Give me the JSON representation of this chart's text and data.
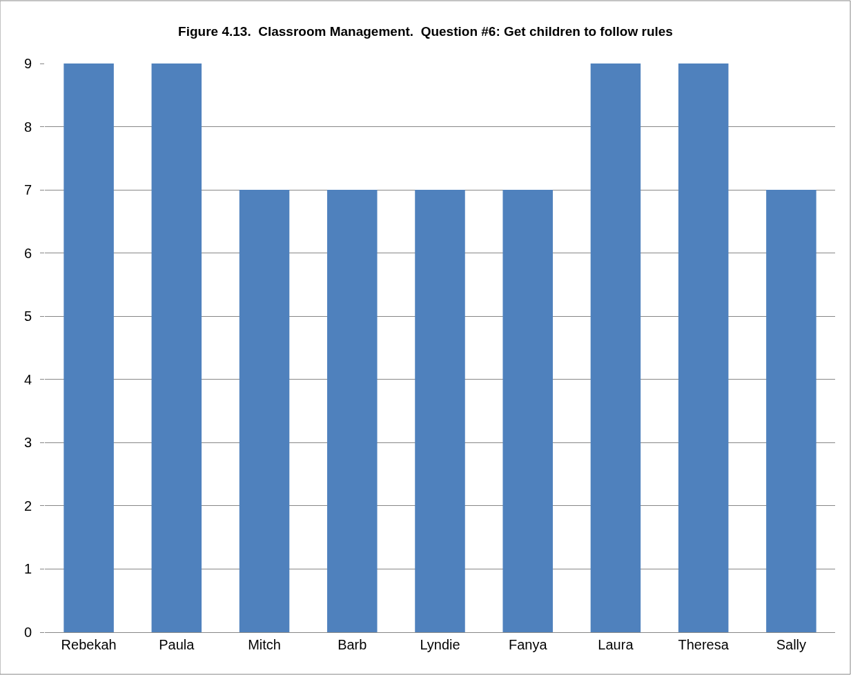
{
  "chart_data": {
    "type": "bar",
    "title": "Figure 4.13.  Classroom Management.  Question #6: Get children to follow rules",
    "categories": [
      "Rebekah",
      "Paula",
      "Mitch",
      "Barb",
      "Lyndie",
      "Fanya",
      "Laura",
      "Theresa",
      "Sally"
    ],
    "values": [
      9,
      9,
      7,
      7,
      7,
      7,
      9,
      9,
      7
    ],
    "color": "#4f81bd",
    "ylim": [
      0,
      9
    ],
    "yticks": [
      0,
      1,
      2,
      3,
      4,
      5,
      6,
      7,
      8,
      9
    ],
    "grid": "y"
  }
}
